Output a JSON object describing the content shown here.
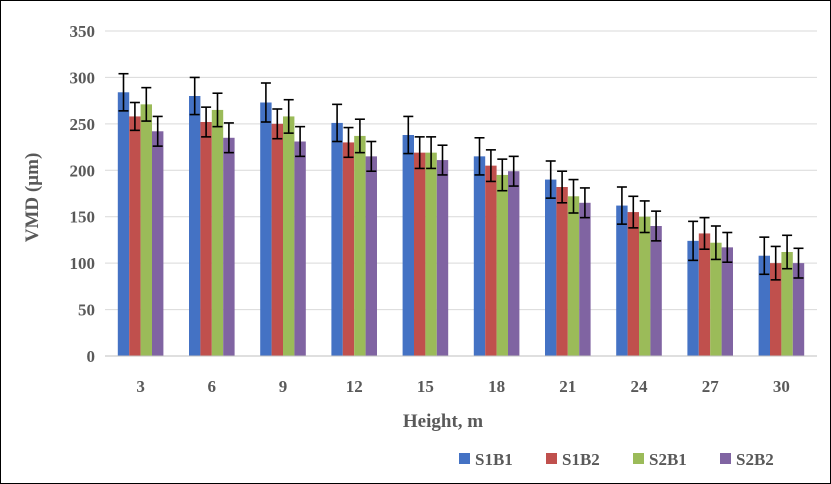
{
  "colors": {
    "S1B1": "#4472c4",
    "S1B2": "#c0504d",
    "S2B1": "#9bbb59",
    "S2B2": "#8064a2",
    "gridline": "#d9d9d9",
    "axis": "#bfbfbf",
    "error_bar": "#000000"
  },
  "chart_data": {
    "type": "bar",
    "xlabel": "Height, m",
    "ylabel": "VMD (µm)",
    "ylim": [
      0,
      350
    ],
    "yticks": [
      "0",
      "50",
      "100",
      "150",
      "200",
      "250",
      "300",
      "350"
    ],
    "ytick_values": [
      0,
      50,
      100,
      150,
      200,
      250,
      300,
      350
    ],
    "categories": [
      "3",
      "6",
      "9",
      "12",
      "15",
      "18",
      "21",
      "24",
      "27",
      "30"
    ],
    "grid": true,
    "legend_position": "bottom-right",
    "error_bars": true,
    "series": [
      {
        "name": "S1B1",
        "values": [
          284,
          280,
          273,
          251,
          238,
          215,
          190,
          162,
          124,
          108
        ],
        "errors": [
          20,
          20,
          21,
          20,
          20,
          20,
          20,
          20,
          21,
          20
        ]
      },
      {
        "name": "S1B2",
        "values": [
          258,
          252,
          250,
          230,
          219,
          205,
          182,
          155,
          132,
          100
        ],
        "errors": [
          15,
          16,
          16,
          16,
          17,
          17,
          17,
          17,
          17,
          18
        ]
      },
      {
        "name": "S2B1",
        "values": [
          271,
          265,
          258,
          237,
          219,
          195,
          172,
          150,
          122,
          112
        ],
        "errors": [
          18,
          18,
          18,
          18,
          17,
          17,
          18,
          17,
          18,
          18
        ]
      },
      {
        "name": "S2B2",
        "values": [
          242,
          235,
          231,
          215,
          211,
          199,
          165,
          140,
          117,
          100
        ],
        "errors": [
          16,
          16,
          16,
          16,
          16,
          16,
          16,
          16,
          16,
          16
        ]
      }
    ]
  }
}
